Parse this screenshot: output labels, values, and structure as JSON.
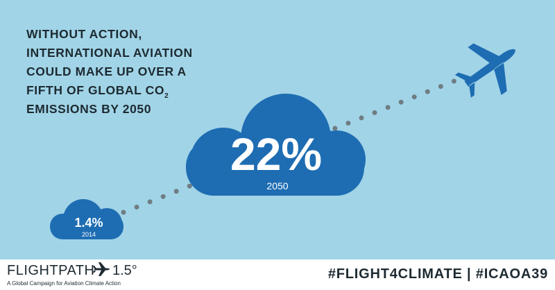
{
  "headline": {
    "lines": [
      "WITHOUT ACTION,",
      "INTERNATIONAL AVIATION",
      "COULD MAKE UP OVER A",
      {
        "text": "FIFTH OF GLOBAL CO",
        "subscript": "2"
      },
      "EMISSIONS BY 2050"
    ]
  },
  "clouds": [
    {
      "value": "1.4%",
      "year": "2014"
    },
    {
      "value": "22%",
      "year": "2050"
    }
  ],
  "footer": {
    "brand": "FLIGHTPATH",
    "brand_number": "1.5°",
    "tagline": "A Global Campaign for Aviation Climate Action",
    "hashtags": "#FLIGHT4CLIMATE | #ICAOA39"
  }
}
